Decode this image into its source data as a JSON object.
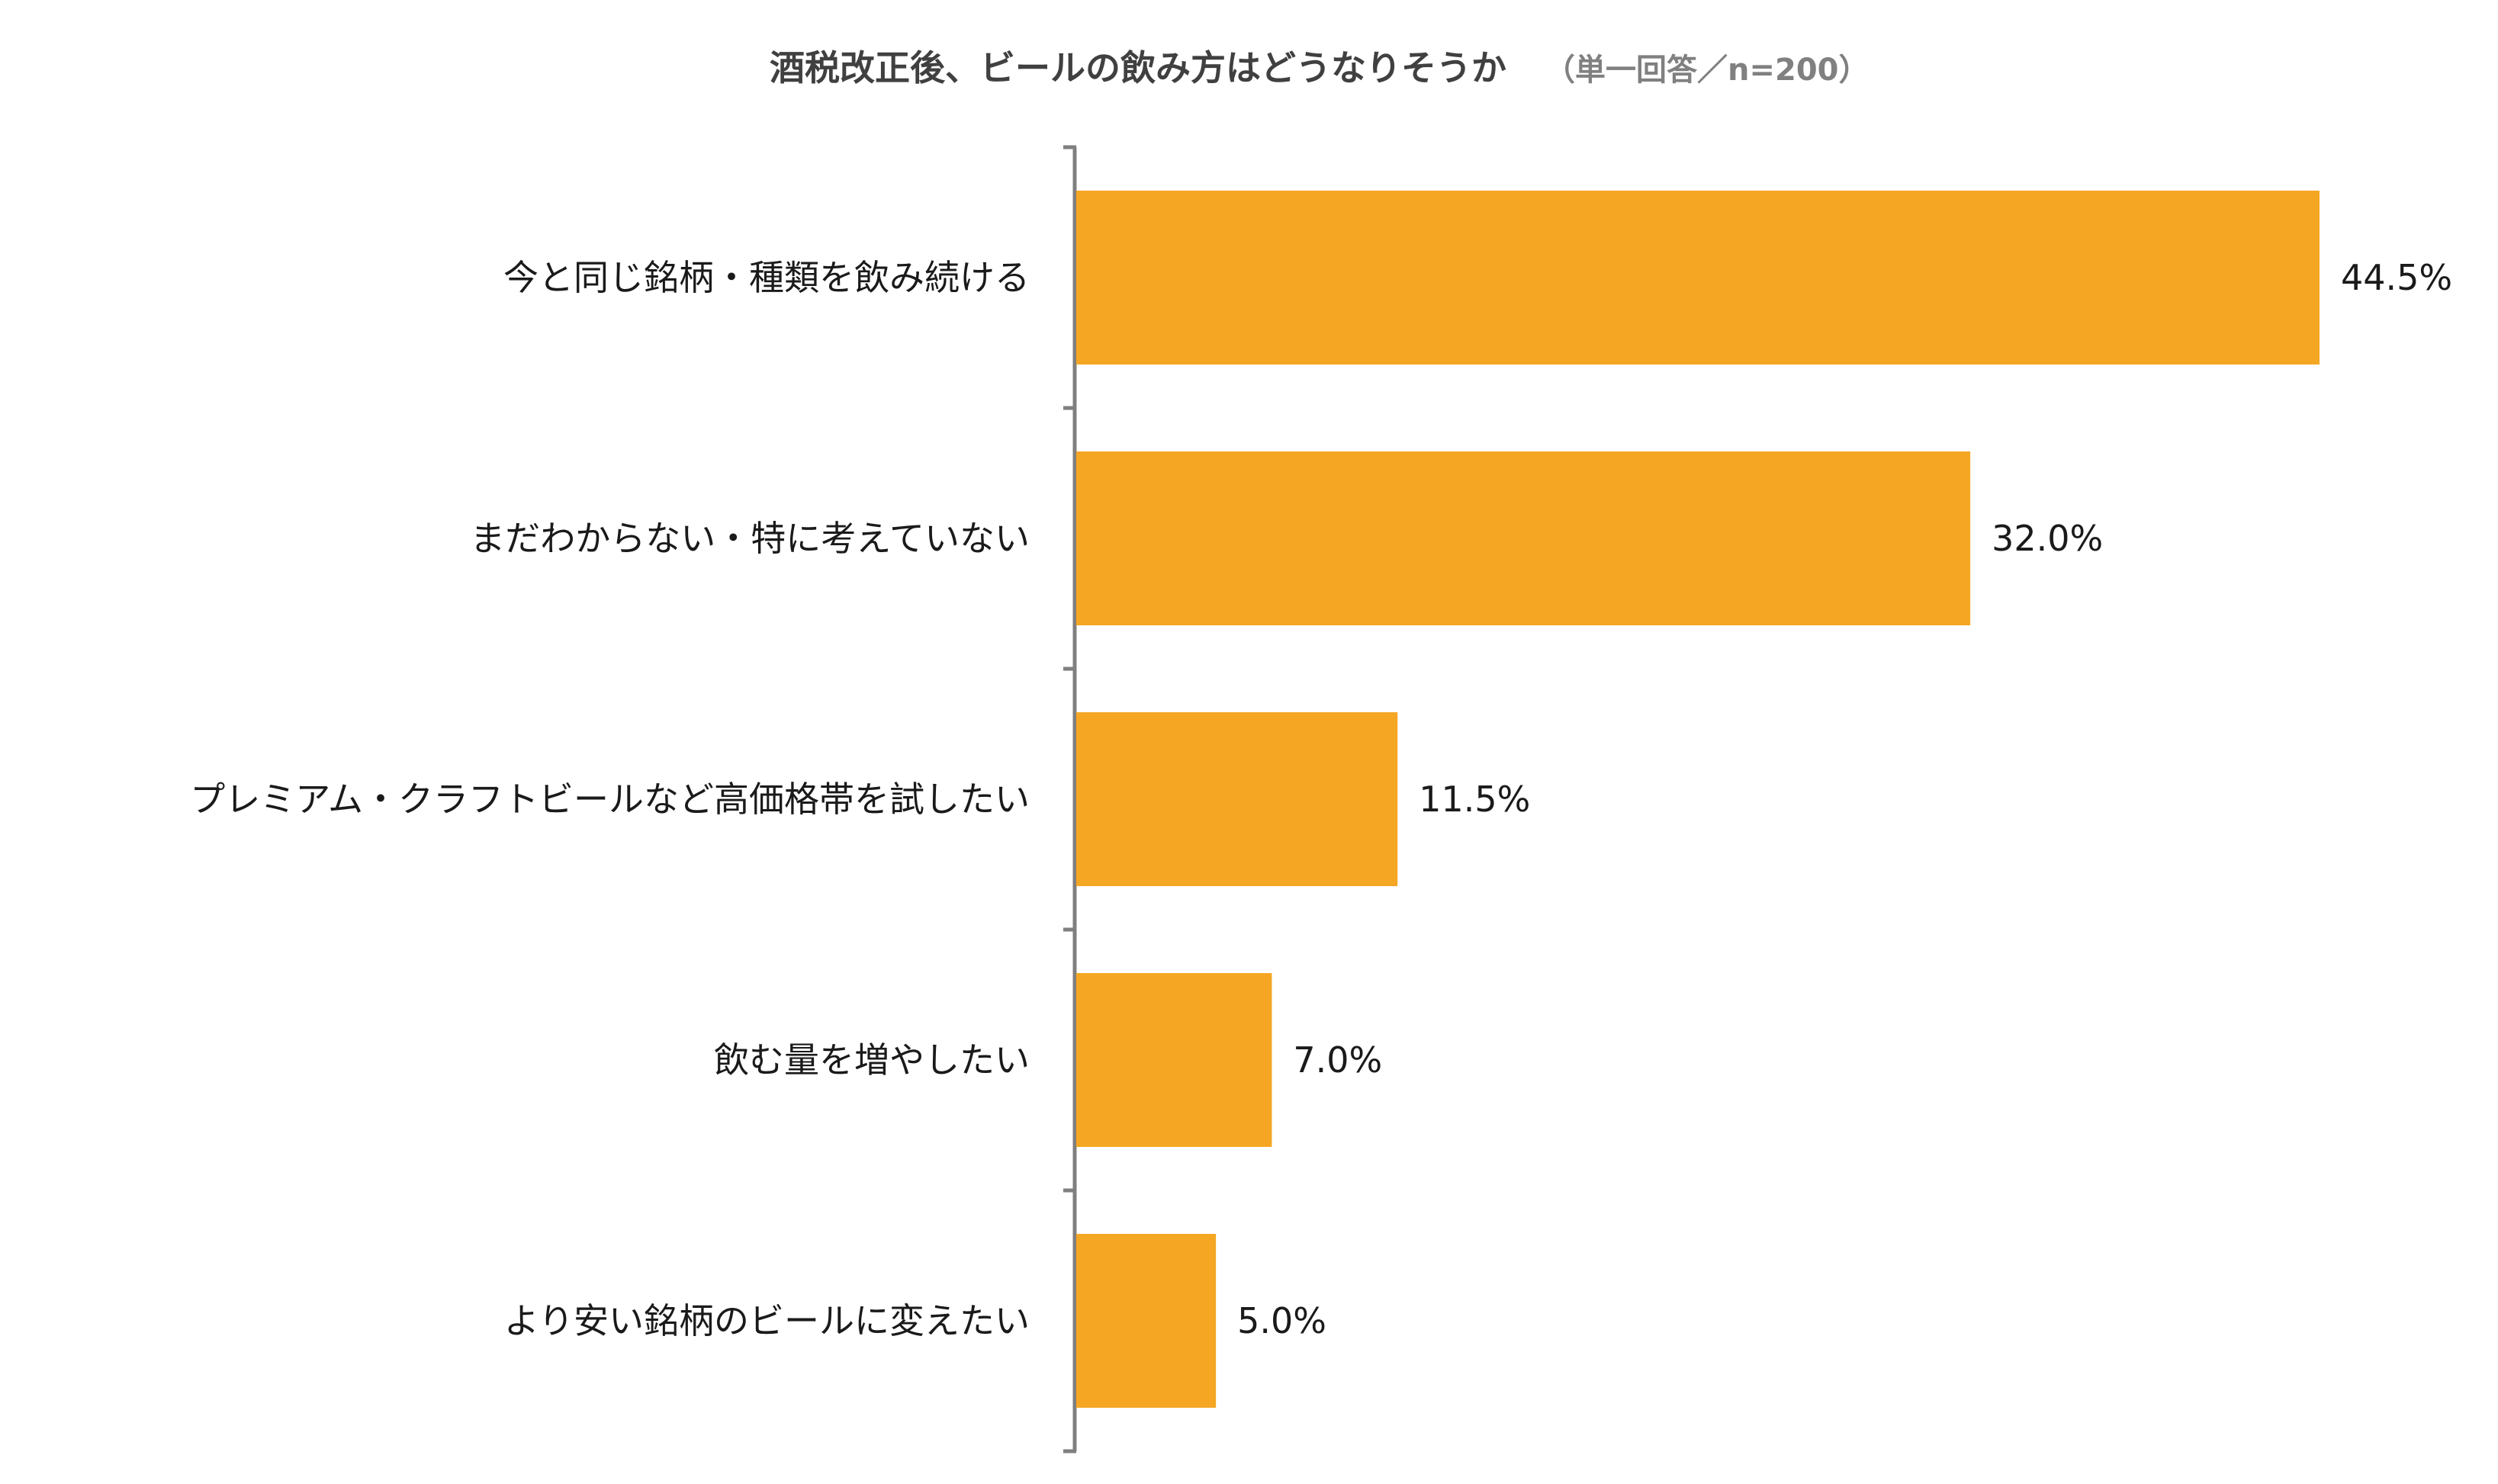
{
  "chart_data": {
    "type": "bar",
    "orientation": "horizontal",
    "title": "酒税改正後、ビールの飲み方はどうなりそうか",
    "subtitle": "（単一回答／n=200）",
    "categories": [
      "今と同じ銘柄・種類を飲み続ける",
      "まだわからない・特に考えていない",
      "プレミアム・クラフトビールなど高価格帯を試したい",
      "飲む量を増やしたい",
      "より安い銘柄のビールに変えたい"
    ],
    "values": [
      44.5,
      32.0,
      11.5,
      7.0,
      5.0
    ],
    "value_labels": [
      "44.5%",
      "32.0%",
      "11.5%",
      "7.0%",
      "5.0%"
    ],
    "unit": "%",
    "xlim": [
      0,
      44.5
    ],
    "grid": false,
    "legend": "none",
    "bar_color": "#F5A623",
    "axis_color": "#7f7f7f"
  }
}
